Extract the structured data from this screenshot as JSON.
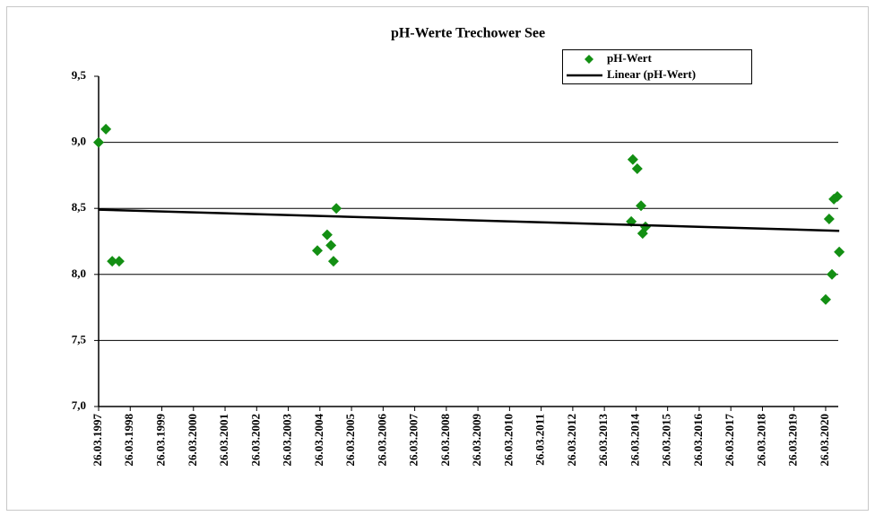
{
  "chart_data": {
    "type": "scatter",
    "title": "pH-Werte  Trechower See",
    "x": [
      1997.23,
      1997.46,
      1997.66,
      1997.88,
      2004.15,
      2004.46,
      2004.58,
      2004.66,
      2004.75,
      2014.08,
      2014.13,
      2014.27,
      2014.39,
      2014.44,
      2014.53,
      2020.23,
      2020.34,
      2020.43,
      2020.49,
      2020.6,
      2020.66
    ],
    "series": [
      {
        "name": "pH-Wert",
        "color": "#138f13",
        "values": [
          9.0,
          9.1,
          8.1,
          8.1,
          8.18,
          8.3,
          8.22,
          8.1,
          8.5,
          8.4,
          8.87,
          8.8,
          8.52,
          8.31,
          8.36,
          7.81,
          8.42,
          8.0,
          8.57,
          8.59,
          8.17
        ]
      },
      {
        "name": "Linear (pH-Wert)",
        "color": "#000000",
        "x": [
          1997.23,
          2020.66
        ],
        "values": [
          8.49,
          8.33
        ]
      }
    ],
    "xlim": [
      1997.23,
      2020.77
    ],
    "xticks": [
      {
        "value": 1997.23,
        "label": "26.03.1997"
      },
      {
        "value": 1998.23,
        "label": "26.03.1998"
      },
      {
        "value": 1999.23,
        "label": "26.03.1999"
      },
      {
        "value": 2000.23,
        "label": "26.03.2000"
      },
      {
        "value": 2001.23,
        "label": "26.03.2001"
      },
      {
        "value": 2002.23,
        "label": "26.03.2002"
      },
      {
        "value": 2003.23,
        "label": "26.03.2003"
      },
      {
        "value": 2004.23,
        "label": "26.03.2004"
      },
      {
        "value": 2005.23,
        "label": "26.03.2005"
      },
      {
        "value": 2006.23,
        "label": "26.03.2006"
      },
      {
        "value": 2007.23,
        "label": "26.03.2007"
      },
      {
        "value": 2008.23,
        "label": "26.03.2008"
      },
      {
        "value": 2009.23,
        "label": "26.03.2009"
      },
      {
        "value": 2010.23,
        "label": "26.03.2010"
      },
      {
        "value": 2011.23,
        "label": "26.03.2011"
      },
      {
        "value": 2012.23,
        "label": "26.03.2012"
      },
      {
        "value": 2013.23,
        "label": "26.03.2013"
      },
      {
        "value": 2014.23,
        "label": "26.03.2014"
      },
      {
        "value": 2015.23,
        "label": "26.03.2015"
      },
      {
        "value": 2016.23,
        "label": "26.03.2016"
      },
      {
        "value": 2017.23,
        "label": "26.03.2017"
      },
      {
        "value": 2018.23,
        "label": "26.03.2018"
      },
      {
        "value": 2019.23,
        "label": "26.03.2019"
      },
      {
        "value": 2020.23,
        "label": "26.03.2020"
      }
    ],
    "ylim": [
      7,
      9.5
    ],
    "yticks": [
      {
        "value": 7,
        "label": "7,0"
      },
      {
        "value": 7.5,
        "label": "7,5"
      },
      {
        "value": 8,
        "label": "8,0"
      },
      {
        "value": 8.5,
        "label": "8,5"
      },
      {
        "value": 9,
        "label": "9,0"
      },
      {
        "value": 9.5,
        "label": "9,5"
      }
    ],
    "grid": true,
    "legend": "top-right"
  }
}
